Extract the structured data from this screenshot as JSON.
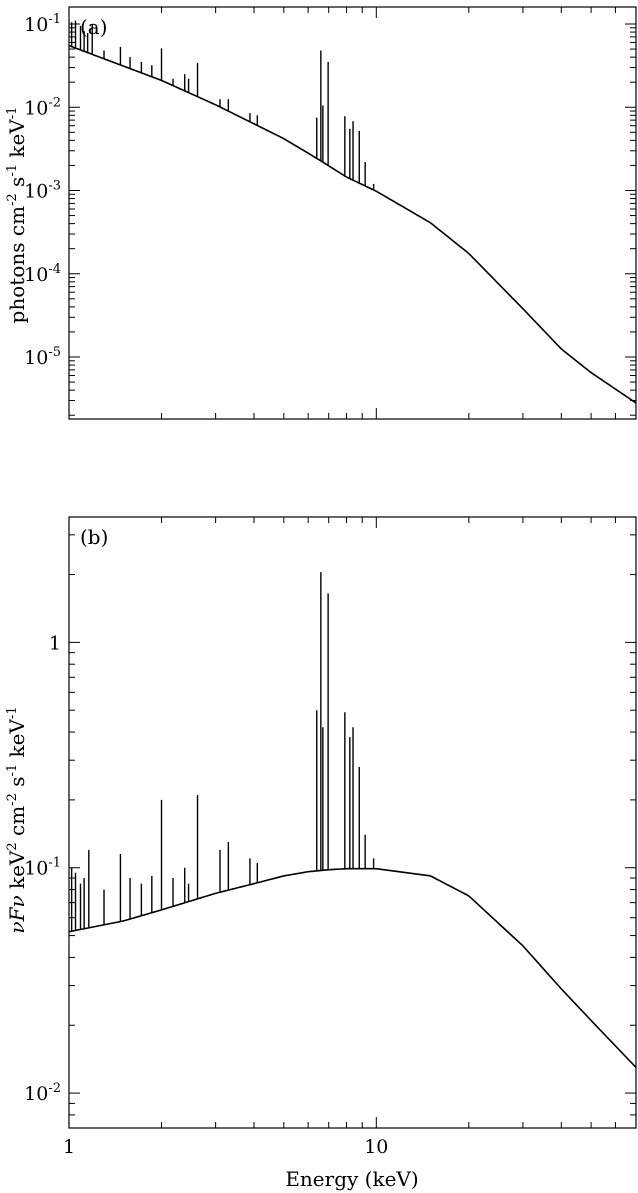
{
  "chart_data": [
    {
      "type": "line",
      "panel_label": "(a)",
      "ylabel": "photons cm-2 s-1 keV-1",
      "ylabel_parts": [
        "photons cm",
        "-2",
        " s",
        "-1",
        " keV",
        "-1"
      ],
      "x_scale": "log",
      "y_scale": "log",
      "xlim": [
        1,
        70
      ],
      "ylim": [
        1.8e-06,
        0.16
      ],
      "y_ticks": [
        {
          "value": 0.1,
          "base": "10",
          "exp": "-1"
        },
        {
          "value": 0.01,
          "base": "10",
          "exp": "-2"
        },
        {
          "value": 0.001,
          "base": "10",
          "exp": "-3"
        },
        {
          "value": 0.0001,
          "base": "10",
          "exp": "-4"
        },
        {
          "value": 1e-05,
          "base": "10",
          "exp": "-5"
        }
      ],
      "x_ticks": [],
      "grid": false,
      "series": [
        {
          "continuum": [
            [
              1,
              0.055
            ],
            [
              2,
              0.021
            ],
            [
              3,
              0.0107
            ],
            [
              5,
              0.0042
            ],
            [
              6.5,
              0.00235
            ],
            [
              8,
              0.00145
            ],
            [
              10,
              0.00098
            ],
            [
              15,
              0.00041
            ],
            [
              20,
              0.000175
            ],
            [
              30,
              3.8e-05
            ],
            [
              40,
              1.25e-05
            ],
            [
              50,
              6.5e-06
            ],
            [
              70,
              2.8e-06
            ]
          ],
          "lines": [
            [
              1.02,
              0.105
            ],
            [
              1.05,
              0.11
            ],
            [
              1.09,
              0.095
            ],
            [
              1.12,
              0.082
            ],
            [
              1.15,
              0.078
            ],
            [
              1.19,
              0.1
            ],
            [
              1.3,
              0.048
            ],
            [
              1.47,
              0.053
            ],
            [
              1.58,
              0.04
            ],
            [
              1.72,
              0.035
            ],
            [
              1.86,
              0.032
            ],
            [
              2.0,
              0.051
            ],
            [
              2.18,
              0.022
            ],
            [
              2.38,
              0.025
            ],
            [
              2.45,
              0.022
            ],
            [
              2.62,
              0.034
            ],
            [
              3.1,
              0.0125
            ],
            [
              3.3,
              0.0125
            ],
            [
              3.88,
              0.0085
            ],
            [
              4.1,
              0.008
            ],
            [
              6.4,
              0.0075
            ],
            [
              6.6,
              0.048
            ],
            [
              6.7,
              0.0105
            ],
            [
              6.97,
              0.035
            ],
            [
              7.9,
              0.0078
            ],
            [
              8.2,
              0.0055
            ],
            [
              8.4,
              0.0068
            ],
            [
              8.8,
              0.0052
            ],
            [
              9.2,
              0.0022
            ],
            [
              9.8,
              0.0012
            ]
          ]
        }
      ]
    },
    {
      "type": "line",
      "panel_label": "(b)",
      "ylabel": "νFν keV2 cm-2 s-1 keV-1",
      "ylabel_parts": [
        "νFν",
        " keV",
        "2",
        " cm",
        "-2",
        " s",
        "-1",
        " keV",
        "-1"
      ],
      "xlabel": "Energy (keV)",
      "x_scale": "log",
      "y_scale": "log",
      "xlim": [
        1,
        70
      ],
      "ylim": [
        0.007,
        3.6
      ],
      "y_ticks": [
        {
          "value": 1,
          "text": "1"
        },
        {
          "value": 0.1,
          "base": "10",
          "exp": "-1"
        },
        {
          "value": 0.01,
          "base": "10",
          "exp": "-2"
        }
      ],
      "x_ticks": [
        {
          "value": 1,
          "text": "1"
        },
        {
          "value": 10,
          "text": "10"
        }
      ],
      "grid": false,
      "series": [
        {
          "continuum": [
            [
              1,
              0.052
            ],
            [
              1.5,
              0.058
            ],
            [
              2,
              0.065
            ],
            [
              3,
              0.077
            ],
            [
              4,
              0.085
            ],
            [
              5,
              0.092
            ],
            [
              6,
              0.096
            ],
            [
              7,
              0.098
            ],
            [
              8,
              0.099
            ],
            [
              10,
              0.099
            ],
            [
              15,
              0.092
            ],
            [
              20,
              0.075
            ],
            [
              30,
              0.045
            ],
            [
              40,
              0.029
            ],
            [
              50,
              0.021
            ],
            [
              70,
              0.013
            ]
          ],
          "lines": [
            [
              1.02,
              0.1
            ],
            [
              1.05,
              0.095
            ],
            [
              1.09,
              0.085
            ],
            [
              1.12,
              0.09
            ],
            [
              1.16,
              0.12
            ],
            [
              1.3,
              0.08
            ],
            [
              1.47,
              0.115
            ],
            [
              1.58,
              0.09
            ],
            [
              1.72,
              0.085
            ],
            [
              1.86,
              0.092
            ],
            [
              2.0,
              0.2
            ],
            [
              2.18,
              0.09
            ],
            [
              2.38,
              0.1
            ],
            [
              2.45,
              0.085
            ],
            [
              2.62,
              0.21
            ],
            [
              3.1,
              0.12
            ],
            [
              3.3,
              0.13
            ],
            [
              3.88,
              0.11
            ],
            [
              4.1,
              0.105
            ],
            [
              6.4,
              0.5
            ],
            [
              6.6,
              2.05
            ],
            [
              6.7,
              0.42
            ],
            [
              6.97,
              1.65
            ],
            [
              7.9,
              0.49
            ],
            [
              8.2,
              0.38
            ],
            [
              8.4,
              0.42
            ],
            [
              8.8,
              0.28
            ],
            [
              9.2,
              0.14
            ],
            [
              9.8,
              0.11
            ]
          ]
        }
      ]
    }
  ]
}
